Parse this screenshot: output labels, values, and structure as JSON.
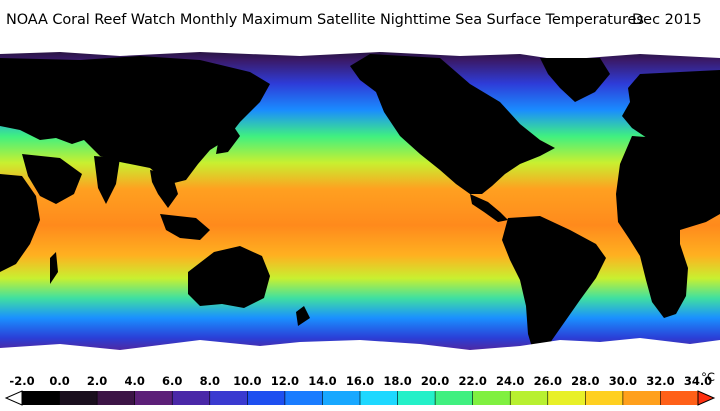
{
  "header": {
    "title": "NOAA Coral Reef Watch Monthly Maximum Satellite Nighttime Sea Surface Temperatures",
    "date": "Dec 2015"
  },
  "map": {
    "projection": "equirectangular",
    "extent": "global",
    "land_color": "#000000",
    "ice_color": "#ffffff"
  },
  "colorbar": {
    "unit": "°C",
    "min": -2.0,
    "max": 34.0,
    "tick_labels": [
      "-2.0",
      "0.0",
      "2.0",
      "4.0",
      "6.0",
      "8.0",
      "10.0",
      "12.0",
      "14.0",
      "16.0",
      "18.0",
      "20.0",
      "22.0",
      "24.0",
      "26.0",
      "28.0",
      "30.0",
      "32.0",
      "34.0"
    ],
    "colors": [
      "#000000",
      "#1a0f1e",
      "#3c1446",
      "#5c1f78",
      "#4a28a8",
      "#3a3ad0",
      "#1e4ff0",
      "#1a7cff",
      "#18a8ff",
      "#1ed8ff",
      "#24f0c8",
      "#40f080",
      "#80f040",
      "#b8f030",
      "#e8f028",
      "#ffd020",
      "#ffa01c",
      "#ff6018",
      "#e82010"
    ]
  }
}
